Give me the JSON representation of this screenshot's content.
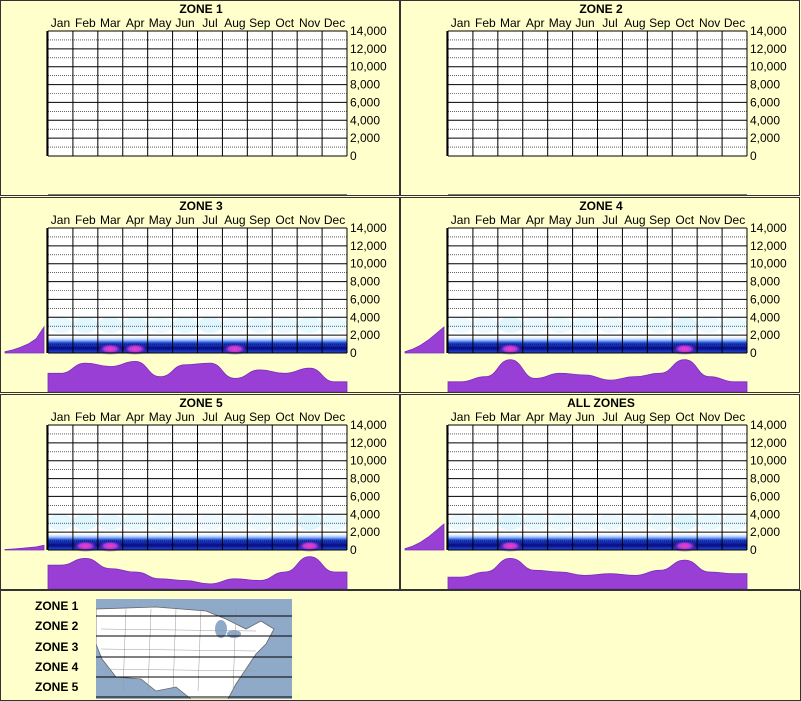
{
  "chart_data": {
    "type": "heatmap",
    "months": [
      "Jan",
      "Feb",
      "Mar",
      "Apr",
      "May",
      "Jun",
      "Jul",
      "Aug",
      "Sep",
      "Oct",
      "Nov",
      "Dec"
    ],
    "y_ticks": [
      "14,000",
      "12,000",
      "10,000",
      "8,000",
      "6,000",
      "4,000",
      "2,000",
      "0"
    ],
    "ylim": [
      0,
      14000
    ],
    "panels": [
      {
        "title": "ZONE 1",
        "has_data": false,
        "elev_profile": [],
        "monthly_density": []
      },
      {
        "title": "ZONE 2",
        "has_data": false,
        "elev_profile": [],
        "monthly_density": []
      },
      {
        "title": "ZONE 3",
        "has_data": true,
        "elev_profile": [
          0.05,
          0.12,
          0.22,
          0.35,
          0.55,
          1.0
        ],
        "monthly_density": [
          0.55,
          0.85,
          0.75,
          0.9,
          0.45,
          0.8,
          0.85,
          0.4,
          0.65,
          0.55,
          0.7,
          0.3
        ],
        "hot_spots": [
          2,
          3,
          7
        ]
      },
      {
        "title": "ZONE 4",
        "has_data": true,
        "elev_profile": [
          0.05,
          0.15,
          0.3,
          0.5,
          0.75,
          1.0
        ],
        "monthly_density": [
          0.3,
          0.45,
          0.95,
          0.4,
          0.55,
          0.5,
          0.35,
          0.45,
          0.55,
          0.95,
          0.45,
          0.3
        ],
        "hot_spots": [
          2,
          9
        ]
      },
      {
        "title": "ZONE 5",
        "has_data": true,
        "elev_profile": [
          0.02,
          0.04,
          0.06,
          0.09,
          0.12,
          0.18
        ],
        "monthly_density": [
          0.7,
          0.9,
          0.6,
          0.5,
          0.3,
          0.25,
          0.15,
          0.3,
          0.25,
          0.5,
          0.95,
          0.5
        ],
        "hot_spots": [
          1,
          2,
          10
        ]
      },
      {
        "title": "ALL ZONES",
        "has_data": true,
        "elev_profile": [
          0.05,
          0.15,
          0.3,
          0.5,
          0.75,
          1.0
        ],
        "monthly_density": [
          0.35,
          0.5,
          0.9,
          0.55,
          0.5,
          0.4,
          0.45,
          0.4,
          0.55,
          0.85,
          0.5,
          0.45
        ],
        "hot_spots": [
          2,
          9
        ]
      }
    ],
    "zone_labels": [
      "ZONE 1",
      "ZONE 2",
      "ZONE 3",
      "ZONE 4",
      "ZONE 5"
    ]
  },
  "colors": {
    "background": "#FFFFCC",
    "density": "#9A3FD6",
    "density_edge": "#7A2FB8",
    "heat_low": "#C8F0FF",
    "heat_mid": "#2050E0",
    "heat_high": "#0A0A80",
    "heat_hot": "#FF3CB4",
    "map_water": "#8FA9C9",
    "map_land": "#FFFFFF"
  }
}
